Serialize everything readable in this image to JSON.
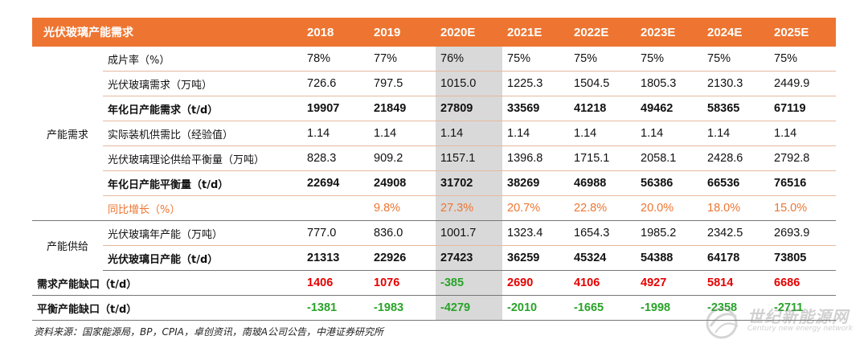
{
  "header": {
    "title": "光伏玻璃产能需求",
    "years": [
      "2018",
      "2019",
      "2020E",
      "2021E",
      "2022E",
      "2023E",
      "2024E",
      "2025E"
    ]
  },
  "groups": {
    "demand": "产能需求",
    "supply": "产能供给"
  },
  "rows": [
    {
      "label": "成片率（%）",
      "values": [
        "78%",
        "77%",
        "76%",
        "75%",
        "75%",
        "75%",
        "75%",
        "75%"
      ]
    },
    {
      "label": "光伏玻璃需求（万吨）",
      "values": [
        "726.6",
        "797.5",
        "1015.0",
        "1225.3",
        "1504.5",
        "1805.3",
        "2130.3",
        "2449.9"
      ]
    },
    {
      "label": "年化日产能需求（t/d）",
      "values": [
        "19907",
        "21849",
        "27809",
        "33569",
        "41218",
        "49462",
        "58365",
        "67119"
      ]
    },
    {
      "label": "实际装机供需比（经验值）",
      "values": [
        "1.14",
        "1.14",
        "1.14",
        "1.14",
        "1.14",
        "1.14",
        "1.14",
        "1.14"
      ]
    },
    {
      "label": "光伏玻璃理论供给平衡量（万吨）",
      "values": [
        "828.3",
        "909.2",
        "1157.1",
        "1396.8",
        "1715.1",
        "2058.1",
        "2428.6",
        "2792.8"
      ]
    },
    {
      "label": "年化日产能平衡量（t/d）",
      "values": [
        "22694",
        "24908",
        "31702",
        "38269",
        "46988",
        "56386",
        "66536",
        "76516"
      ]
    },
    {
      "label": "同比增长（%）",
      "values": [
        "",
        "9.8%",
        "27.3%",
        "20.7%",
        "22.8%",
        "20.0%",
        "18.0%",
        "15.0%"
      ]
    },
    {
      "label": "光伏玻璃年产能（万吨）",
      "values": [
        "777.0",
        "836.0",
        "1001.7",
        "1323.4",
        "1654.3",
        "1985.2",
        "2342.5",
        "2693.9"
      ]
    },
    {
      "label": "光伏玻璃日产能（t/d）",
      "values": [
        "21313",
        "22926",
        "27423",
        "36259",
        "45324",
        "54388",
        "64178",
        "73805"
      ]
    },
    {
      "label": "需求产能缺口（t/d）",
      "values": [
        "1406",
        "1076",
        "-385",
        "2690",
        "4106",
        "4927",
        "5814",
        "6686"
      ]
    },
    {
      "label": "平衡产能缺口（t/d）",
      "values": [
        "-1381",
        "-1983",
        "-4279",
        "-2010",
        "-1665",
        "-1998",
        "-2358",
        "-2711"
      ]
    }
  ],
  "colors": {
    "header_bg": "#ee7531",
    "positive": "#e60000",
    "negative": "#29a329",
    "growth": "#ee7531",
    "highlight": "#d9d9d9"
  },
  "source": "资料来源：国家能源局，BP，CPIA，卓创资讯，南玻A公司公告，中港证券研究所",
  "watermark": {
    "cn": "世纪新能源网",
    "en": "Century new energy network"
  }
}
